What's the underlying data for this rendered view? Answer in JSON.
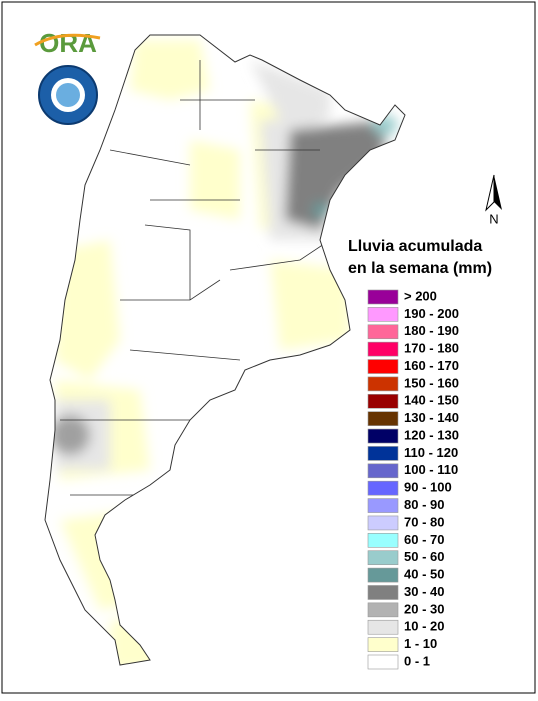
{
  "logo": {
    "text": "ORA"
  },
  "north": "N",
  "legend": {
    "title": [
      "Lluvia acumulada",
      "en la semana (mm)"
    ],
    "items": [
      {
        "label": "> 200",
        "color": "#990099"
      },
      {
        "label": "190 - 200",
        "color": "#ff99ff"
      },
      {
        "label": "180 - 190",
        "color": "#ff6699"
      },
      {
        "label": "170 - 180",
        "color": "#ff0066"
      },
      {
        "label": "160 - 170",
        "color": "#ff0000"
      },
      {
        "label": "150 - 160",
        "color": "#cc3300"
      },
      {
        "label": "140 - 150",
        "color": "#990000"
      },
      {
        "label": "130 - 140",
        "color": "#663300"
      },
      {
        "label": "120 - 130",
        "color": "#000066"
      },
      {
        "label": "110 - 120",
        "color": "#003399"
      },
      {
        "label": "100 - 110",
        "color": "#6666cc"
      },
      {
        "label": "90 - 100",
        "color": "#6666ff"
      },
      {
        "label": "80 - 90",
        "color": "#9999ff"
      },
      {
        "label": "70 - 80",
        "color": "#ccccff"
      },
      {
        "label": "60 - 70",
        "color": "#99ffff"
      },
      {
        "label": "50 - 60",
        "color": "#99cccc"
      },
      {
        "label": "40 - 50",
        "color": "#669999"
      },
      {
        "label": "30 - 40",
        "color": "#808080"
      },
      {
        "label": "20 - 30",
        "color": "#b2b2b2"
      },
      {
        "label": "10 - 20",
        "color": "#e6e6e6"
      },
      {
        "label": "1 - 10",
        "color": "#ffffcc"
      },
      {
        "label": "0 - 1",
        "color": "#ffffff"
      }
    ]
  }
}
